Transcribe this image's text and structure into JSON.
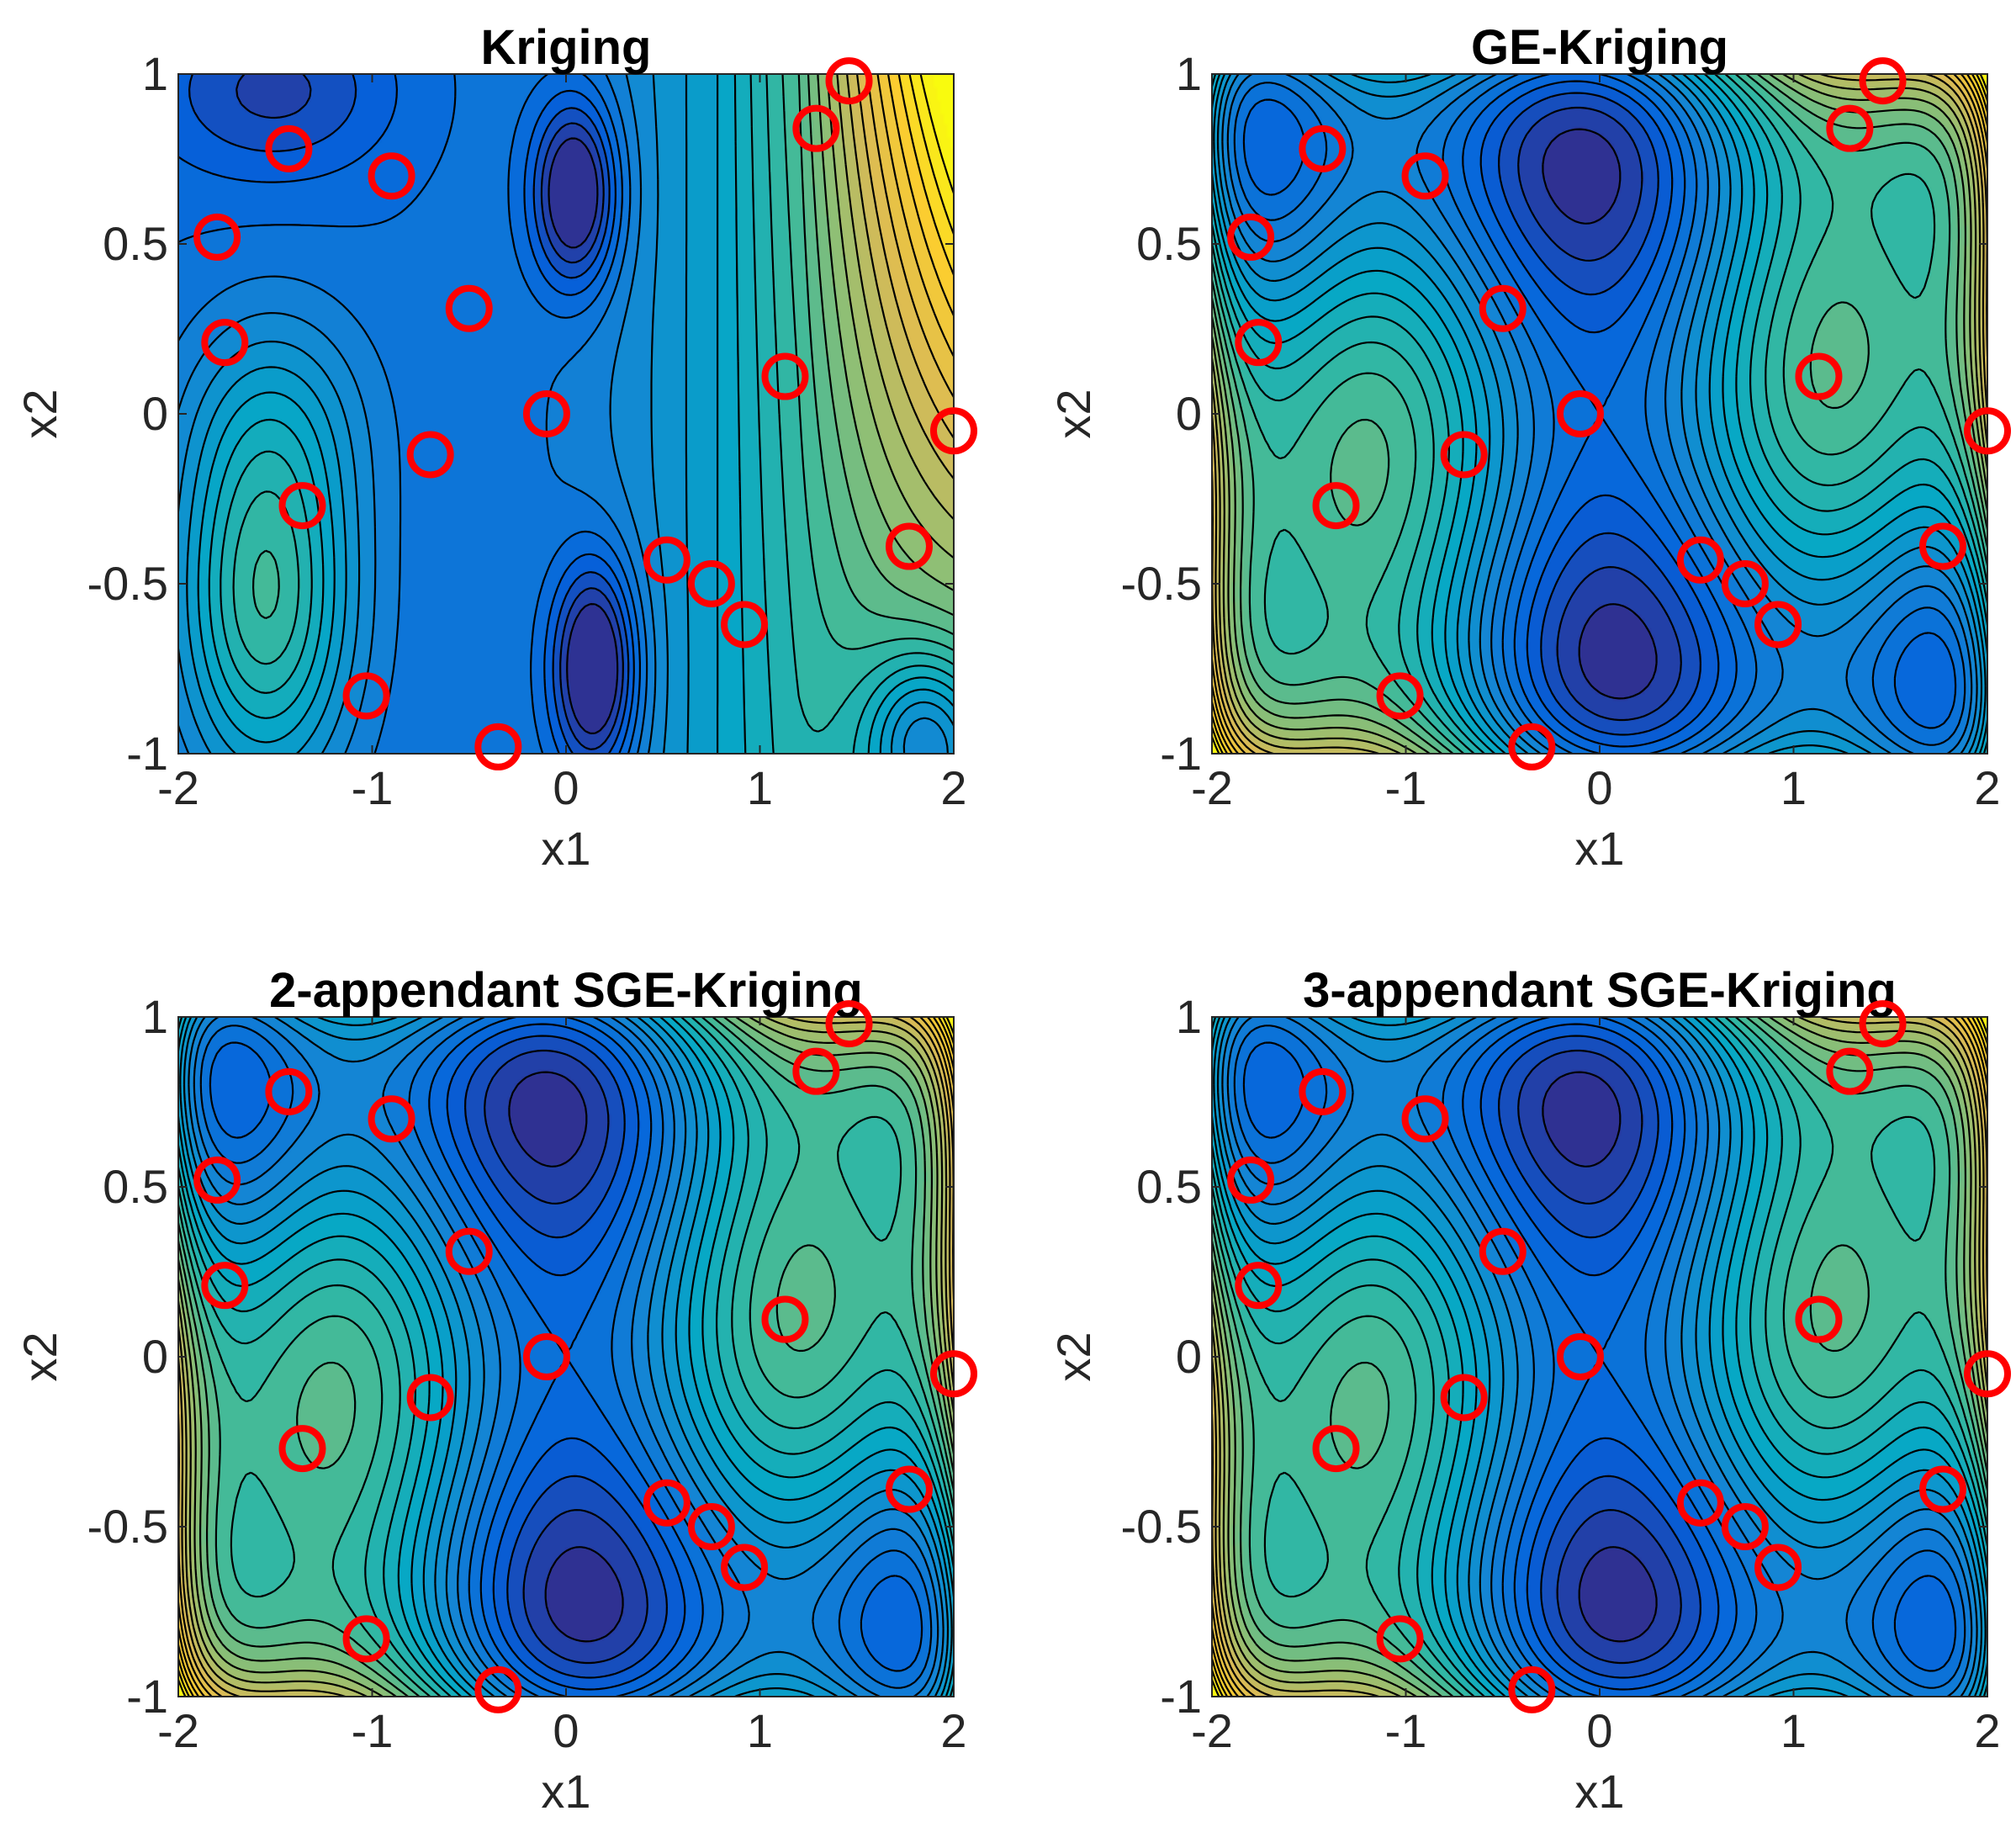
{
  "figure": {
    "panels": [
      {
        "id": "kriging",
        "title": "Kriging",
        "xlabel": "x1",
        "ylabel": "x2"
      },
      {
        "id": "ge-kriging",
        "title": "GE-Kriging",
        "xlabel": "x1",
        "ylabel": "x2"
      },
      {
        "id": "sge2",
        "title": "2-appendant SGE-Kriging",
        "xlabel": "x1",
        "ylabel": "x2"
      },
      {
        "id": "sge3",
        "title": "3-appendant SGE-Kriging",
        "xlabel": "x1",
        "ylabel": "x2"
      }
    ]
  },
  "chart_data": [
    {
      "type": "contour",
      "title": "Kriging",
      "xlabel": "x1",
      "ylabel": "x2",
      "xlim": [
        -2,
        2
      ],
      "ylim": [
        -1,
        1
      ],
      "xticks": [
        "-2",
        "-1",
        "0",
        "1",
        "2"
      ],
      "yticks": [
        "1",
        "0.5",
        "0",
        "-0.5",
        "-1"
      ],
      "colormap": "parula",
      "marker_color": "#ff0000",
      "sample_points": [
        [
          -1.43,
          0.78
        ],
        [
          -0.9,
          0.7
        ],
        [
          -1.8,
          0.52
        ],
        [
          -1.76,
          0.21
        ],
        [
          -0.5,
          0.31
        ],
        [
          -0.1,
          0.0
        ],
        [
          -0.7,
          -0.12
        ],
        [
          -1.36,
          -0.27
        ],
        [
          1.13,
          0.11
        ],
        [
          1.29,
          0.84
        ],
        [
          1.46,
          0.98
        ],
        [
          2.0,
          -0.05
        ],
        [
          1.77,
          -0.39
        ],
        [
          0.52,
          -0.43
        ],
        [
          0.75,
          -0.5
        ],
        [
          0.92,
          -0.62
        ],
        [
          -1.03,
          -0.83
        ],
        [
          -0.35,
          -0.98
        ]
      ]
    },
    {
      "type": "contour",
      "title": "GE-Kriging",
      "xlabel": "x1",
      "ylabel": "x2",
      "xlim": [
        -2,
        2
      ],
      "ylim": [
        -1,
        1
      ],
      "xticks": [
        "-2",
        "-1",
        "0",
        "1",
        "2"
      ],
      "yticks": [
        "1",
        "0.5",
        "0",
        "-0.5",
        "-1"
      ],
      "colormap": "parula",
      "marker_color": "#ff0000",
      "sample_points": [
        [
          -1.43,
          0.78
        ],
        [
          -0.9,
          0.7
        ],
        [
          -1.8,
          0.52
        ],
        [
          -1.76,
          0.21
        ],
        [
          -0.5,
          0.31
        ],
        [
          -0.1,
          0.0
        ],
        [
          -0.7,
          -0.12
        ],
        [
          -1.36,
          -0.27
        ],
        [
          1.13,
          0.11
        ],
        [
          1.29,
          0.84
        ],
        [
          1.46,
          0.98
        ],
        [
          2.0,
          -0.05
        ],
        [
          1.77,
          -0.39
        ],
        [
          0.52,
          -0.43
        ],
        [
          0.75,
          -0.5
        ],
        [
          0.92,
          -0.62
        ],
        [
          -1.03,
          -0.83
        ],
        [
          -0.35,
          -0.98
        ]
      ]
    },
    {
      "type": "contour",
      "title": "2-appendant SGE-Kriging",
      "xlabel": "x1",
      "ylabel": "x2",
      "xlim": [
        -2,
        2
      ],
      "ylim": [
        -1,
        1
      ],
      "xticks": [
        "-2",
        "-1",
        "0",
        "1",
        "2"
      ],
      "yticks": [
        "1",
        "0.5",
        "0",
        "-0.5",
        "-1"
      ],
      "colormap": "parula",
      "marker_color": "#ff0000",
      "sample_points": [
        [
          -1.43,
          0.78
        ],
        [
          -0.9,
          0.7
        ],
        [
          -1.8,
          0.52
        ],
        [
          -1.76,
          0.21
        ],
        [
          -0.5,
          0.31
        ],
        [
          -0.1,
          0.0
        ],
        [
          -0.7,
          -0.12
        ],
        [
          -1.36,
          -0.27
        ],
        [
          1.13,
          0.11
        ],
        [
          1.29,
          0.84
        ],
        [
          1.46,
          0.98
        ],
        [
          2.0,
          -0.05
        ],
        [
          1.77,
          -0.39
        ],
        [
          0.52,
          -0.43
        ],
        [
          0.75,
          -0.5
        ],
        [
          0.92,
          -0.62
        ],
        [
          -1.03,
          -0.83
        ],
        [
          -0.35,
          -0.98
        ]
      ]
    },
    {
      "type": "contour",
      "title": "3-appendant SGE-Kriging",
      "xlabel": "x1",
      "ylabel": "x2",
      "xlim": [
        -2,
        2
      ],
      "ylim": [
        -1,
        1
      ],
      "xticks": [
        "-2",
        "-1",
        "0",
        "1",
        "2"
      ],
      "yticks": [
        "1",
        "0.5",
        "0",
        "-0.5",
        "-1"
      ],
      "colormap": "parula",
      "marker_color": "#ff0000",
      "sample_points": [
        [
          -1.43,
          0.78
        ],
        [
          -0.9,
          0.7
        ],
        [
          -1.8,
          0.52
        ],
        [
          -1.76,
          0.21
        ],
        [
          -0.5,
          0.31
        ],
        [
          -0.1,
          0.0
        ],
        [
          -0.7,
          -0.12
        ],
        [
          -1.36,
          -0.27
        ],
        [
          1.13,
          0.11
        ],
        [
          1.29,
          0.84
        ],
        [
          1.46,
          0.98
        ],
        [
          2.0,
          -0.05
        ],
        [
          1.77,
          -0.39
        ],
        [
          0.52,
          -0.43
        ],
        [
          0.75,
          -0.5
        ],
        [
          0.92,
          -0.62
        ],
        [
          -1.03,
          -0.83
        ],
        [
          -0.35,
          -0.98
        ]
      ]
    }
  ]
}
